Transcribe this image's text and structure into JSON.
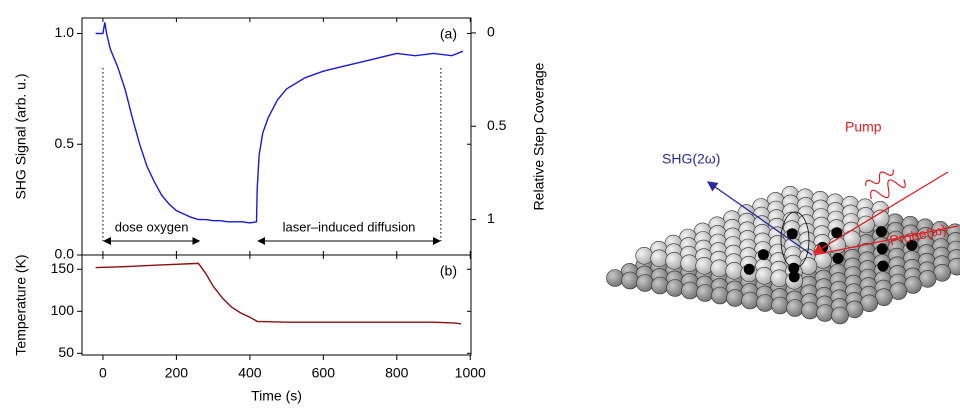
{
  "chart_data": [
    {
      "type": "line",
      "panel_label": "(a)",
      "ylabel": "SHG Signal (arb. u.)",
      "y2label": "Relative Step Coverage",
      "xlim": [
        -57,
        1002
      ],
      "ylim": [
        0,
        1.07
      ],
      "yticks": [
        {
          "value": 0,
          "label": "0.0"
        },
        0.5,
        {
          "value": 1,
          "label": "1.0"
        }
      ],
      "y2lim": [
        1.19,
        -0.08
      ],
      "y2ticks": [
        0,
        0.5,
        1
      ],
      "annotations": [
        {
          "text": "dose oxygen",
          "x": [
            0,
            265
          ]
        },
        {
          "text": "laser–induced diffusion",
          "x": [
            420,
            920
          ]
        }
      ],
      "x": [
        -20,
        0,
        5,
        10,
        20,
        40,
        60,
        80,
        100,
        120,
        140,
        160,
        180,
        200,
        220,
        240,
        260,
        280,
        300,
        320,
        340,
        360,
        380,
        400,
        418,
        420,
        425,
        435,
        450,
        475,
        500,
        550,
        600,
        650,
        700,
        750,
        800,
        850,
        900,
        950,
        980
      ],
      "series": [
        {
          "color": "#1a1ad6",
          "values": [
            1.0,
            1.0,
            1.05,
            1.0,
            0.93,
            0.85,
            0.75,
            0.62,
            0.5,
            0.4,
            0.33,
            0.27,
            0.23,
            0.2,
            0.185,
            0.17,
            0.16,
            0.16,
            0.155,
            0.155,
            0.15,
            0.15,
            0.15,
            0.145,
            0.15,
            0.3,
            0.45,
            0.55,
            0.62,
            0.7,
            0.75,
            0.8,
            0.83,
            0.85,
            0.87,
            0.89,
            0.91,
            0.9,
            0.91,
            0.9,
            0.92
          ]
        }
      ]
    },
    {
      "type": "line",
      "panel_label": "(b)",
      "ylabel": "Temperature (K)",
      "xlabel": "Time (s)",
      "xlim": [
        -57,
        1002
      ],
      "xticks": [
        0,
        200,
        400,
        600,
        800,
        1000
      ],
      "ylim": [
        48,
        167
      ],
      "yticks": [
        50,
        100,
        150
      ],
      "x": [
        -20,
        50,
        150,
        260,
        280,
        300,
        325,
        350,
        375,
        400,
        420,
        500,
        700,
        900,
        960,
        975
      ],
      "series": [
        {
          "color": "#8b1010",
          "values": [
            152,
            153,
            155,
            157,
            145,
            130,
            116,
            105,
            98,
            93,
            88,
            87,
            87,
            87,
            86,
            85
          ]
        }
      ]
    }
  ],
  "diagram": {
    "labels": {
      "shg": "SHG(2ω)",
      "pump": "Pump",
      "probe": "Probe(ω)"
    }
  }
}
